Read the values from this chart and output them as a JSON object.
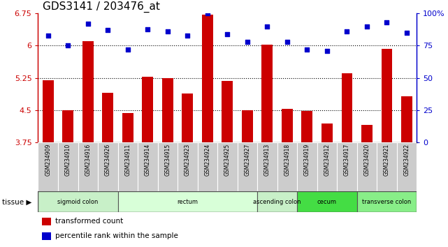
{
  "title": "GDS3141 / 203476_at",
  "samples": [
    "GSM234909",
    "GSM234910",
    "GSM234916",
    "GSM234926",
    "GSM234911",
    "GSM234914",
    "GSM234915",
    "GSM234923",
    "GSM234924",
    "GSM234925",
    "GSM234927",
    "GSM234913",
    "GSM234918",
    "GSM234919",
    "GSM234912",
    "GSM234917",
    "GSM234920",
    "GSM234921",
    "GSM234922"
  ],
  "bar_values": [
    5.2,
    4.5,
    6.1,
    4.9,
    4.42,
    5.28,
    5.25,
    4.88,
    6.73,
    5.17,
    4.5,
    6.02,
    4.52,
    4.48,
    4.18,
    5.35,
    4.15,
    5.93,
    4.82
  ],
  "dot_values": [
    83,
    75,
    92,
    87,
    72,
    88,
    86,
    83,
    100,
    84,
    78,
    90,
    78,
    72,
    71,
    86,
    90,
    93,
    85
  ],
  "ylim_left": [
    3.75,
    6.75
  ],
  "ylim_right": [
    0,
    100
  ],
  "yticks_left": [
    3.75,
    4.5,
    5.25,
    6.0,
    6.75
  ],
  "yticks_right": [
    0,
    25,
    50,
    75,
    100
  ],
  "hlines": [
    6.0,
    5.25,
    4.5
  ],
  "bar_color": "#cc0000",
  "dot_color": "#0000cc",
  "tissue_groups": [
    {
      "label": "sigmoid colon",
      "start": 0,
      "end": 4,
      "color": "#c8f0c8"
    },
    {
      "label": "rectum",
      "start": 4,
      "end": 11,
      "color": "#d8ffd8"
    },
    {
      "label": "ascending colon",
      "start": 11,
      "end": 13,
      "color": "#c8f0c8"
    },
    {
      "label": "cecum",
      "start": 13,
      "end": 16,
      "color": "#44dd44"
    },
    {
      "label": "transverse colon",
      "start": 16,
      "end": 19,
      "color": "#88ee88"
    }
  ],
  "legend_items": [
    {
      "label": "transformed count",
      "color": "#cc0000"
    },
    {
      "label": "percentile rank within the sample",
      "color": "#0000cc"
    }
  ],
  "tissue_label": "tissue",
  "bg_color": "#ffffff",
  "left_axis_color": "#cc0000",
  "right_axis_color": "#0000cc",
  "title_fontsize": 11,
  "bar_width": 0.55,
  "bar_bottom": 3.75,
  "label_bg_color": "#cccccc",
  "label_border_color": "#ffffff"
}
